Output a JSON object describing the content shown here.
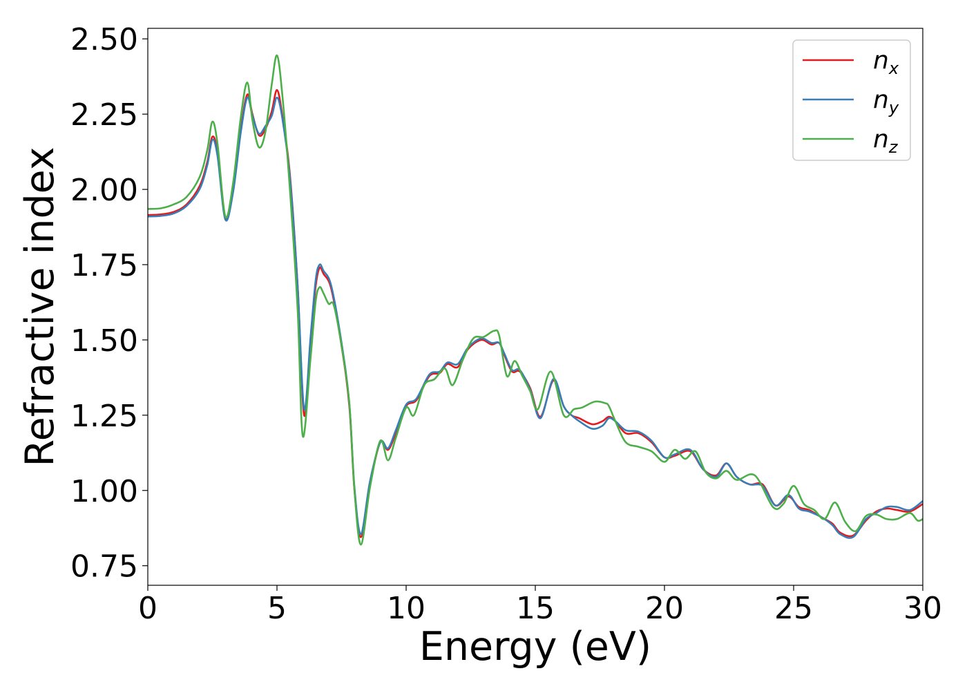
{
  "chart_data": {
    "type": "line",
    "xlabel": "Energy (eV)",
    "ylabel": "Refractive index",
    "xlim": [
      0,
      30
    ],
    "ylim": [
      0.685,
      2.535
    ],
    "x_ticks": [
      "0",
      "5",
      "10",
      "15",
      "20",
      "25",
      "30"
    ],
    "y_ticks": [
      "0.75",
      "1.00",
      "1.25",
      "1.50",
      "1.75",
      "2.00",
      "2.25",
      "2.50"
    ],
    "x_tick_values": [
      0,
      5,
      10,
      15,
      20,
      25,
      30
    ],
    "y_tick_values": [
      0.75,
      1.0,
      1.25,
      1.5,
      1.75,
      2.0,
      2.25,
      2.5
    ],
    "grid": false,
    "legend_position": "top-right",
    "series": [
      {
        "name": "n",
        "subscript": "x",
        "color": "#e41a1c",
        "points": [
          [
            0,
            1.915
          ],
          [
            0.5,
            1.917
          ],
          [
            1.0,
            1.925
          ],
          [
            1.5,
            1.95
          ],
          [
            2.0,
            2.01
          ],
          [
            2.3,
            2.09
          ],
          [
            2.5,
            2.175
          ],
          [
            2.7,
            2.12
          ],
          [
            3.0,
            1.905
          ],
          [
            3.3,
            2.0
          ],
          [
            3.6,
            2.2
          ],
          [
            3.85,
            2.315
          ],
          [
            4.05,
            2.25
          ],
          [
            4.3,
            2.18
          ],
          [
            4.55,
            2.2
          ],
          [
            4.8,
            2.26
          ],
          [
            5.0,
            2.33
          ],
          [
            5.2,
            2.25
          ],
          [
            5.5,
            2.05
          ],
          [
            5.8,
            1.68
          ],
          [
            6.05,
            1.25
          ],
          [
            6.3,
            1.5
          ],
          [
            6.5,
            1.68
          ],
          [
            6.65,
            1.74
          ],
          [
            6.8,
            1.72
          ],
          [
            7.1,
            1.67
          ],
          [
            7.5,
            1.48
          ],
          [
            7.8,
            1.28
          ],
          [
            8.0,
            1.0
          ],
          [
            8.25,
            0.845
          ],
          [
            8.6,
            1.02
          ],
          [
            9.0,
            1.16
          ],
          [
            9.3,
            1.135
          ],
          [
            9.6,
            1.19
          ],
          [
            10.0,
            1.28
          ],
          [
            10.4,
            1.3
          ],
          [
            10.9,
            1.38
          ],
          [
            11.3,
            1.39
          ],
          [
            11.6,
            1.42
          ],
          [
            12.0,
            1.41
          ],
          [
            12.4,
            1.47
          ],
          [
            12.9,
            1.5
          ],
          [
            13.3,
            1.485
          ],
          [
            13.6,
            1.49
          ],
          [
            13.8,
            1.45
          ],
          [
            14.1,
            1.395
          ],
          [
            14.4,
            1.395
          ],
          [
            14.8,
            1.34
          ],
          [
            15.2,
            1.245
          ],
          [
            15.7,
            1.365
          ],
          [
            16.1,
            1.28
          ],
          [
            16.4,
            1.25
          ],
          [
            16.7,
            1.24
          ],
          [
            17.2,
            1.22
          ],
          [
            17.6,
            1.23
          ],
          [
            17.85,
            1.245
          ],
          [
            18.1,
            1.23
          ],
          [
            18.5,
            1.19
          ],
          [
            19.0,
            1.19
          ],
          [
            19.5,
            1.16
          ],
          [
            20.0,
            1.11
          ],
          [
            20.4,
            1.115
          ],
          [
            21.0,
            1.13
          ],
          [
            21.5,
            1.07
          ],
          [
            22.0,
            1.05
          ],
          [
            22.4,
            1.09
          ],
          [
            22.8,
            1.045
          ],
          [
            23.3,
            1.02
          ],
          [
            23.8,
            1.02
          ],
          [
            24.3,
            0.95
          ],
          [
            24.8,
            0.98
          ],
          [
            25.2,
            0.945
          ],
          [
            25.6,
            0.935
          ],
          [
            26.1,
            0.91
          ],
          [
            26.5,
            0.89
          ],
          [
            26.8,
            0.86
          ],
          [
            27.3,
            0.85
          ],
          [
            27.8,
            0.9
          ],
          [
            28.2,
            0.93
          ],
          [
            28.6,
            0.94
          ],
          [
            29.0,
            0.935
          ],
          [
            29.5,
            0.93
          ],
          [
            30.0,
            0.955
          ]
        ]
      },
      {
        "name": "n",
        "subscript": "y",
        "color": "#377eb8",
        "points": [
          [
            0,
            1.91
          ],
          [
            0.5,
            1.912
          ],
          [
            1.0,
            1.92
          ],
          [
            1.5,
            1.945
          ],
          [
            2.0,
            2.0
          ],
          [
            2.3,
            2.08
          ],
          [
            2.5,
            2.165
          ],
          [
            2.7,
            2.11
          ],
          [
            3.0,
            1.9
          ],
          [
            3.3,
            1.99
          ],
          [
            3.6,
            2.19
          ],
          [
            3.85,
            2.305
          ],
          [
            4.05,
            2.245
          ],
          [
            4.3,
            2.185
          ],
          [
            4.55,
            2.21
          ],
          [
            4.8,
            2.245
          ],
          [
            5.0,
            2.305
          ],
          [
            5.2,
            2.24
          ],
          [
            5.5,
            2.04
          ],
          [
            5.8,
            1.68
          ],
          [
            6.05,
            1.27
          ],
          [
            6.3,
            1.51
          ],
          [
            6.5,
            1.7
          ],
          [
            6.65,
            1.75
          ],
          [
            6.8,
            1.73
          ],
          [
            7.1,
            1.68
          ],
          [
            7.5,
            1.49
          ],
          [
            7.8,
            1.29
          ],
          [
            8.0,
            1.01
          ],
          [
            8.25,
            0.855
          ],
          [
            8.6,
            1.03
          ],
          [
            9.0,
            1.16
          ],
          [
            9.3,
            1.14
          ],
          [
            9.6,
            1.2
          ],
          [
            10.0,
            1.285
          ],
          [
            10.4,
            1.305
          ],
          [
            10.9,
            1.385
          ],
          [
            11.3,
            1.395
          ],
          [
            11.6,
            1.425
          ],
          [
            12.0,
            1.42
          ],
          [
            12.4,
            1.475
          ],
          [
            12.9,
            1.505
          ],
          [
            13.3,
            1.49
          ],
          [
            13.6,
            1.49
          ],
          [
            13.8,
            1.455
          ],
          [
            14.1,
            1.4
          ],
          [
            14.4,
            1.4
          ],
          [
            14.8,
            1.335
          ],
          [
            15.2,
            1.24
          ],
          [
            15.7,
            1.37
          ],
          [
            16.1,
            1.28
          ],
          [
            16.4,
            1.25
          ],
          [
            16.7,
            1.23
          ],
          [
            17.2,
            1.205
          ],
          [
            17.6,
            1.215
          ],
          [
            17.85,
            1.24
          ],
          [
            18.1,
            1.23
          ],
          [
            18.5,
            1.2
          ],
          [
            19.0,
            1.195
          ],
          [
            19.5,
            1.165
          ],
          [
            20.0,
            1.11
          ],
          [
            20.4,
            1.12
          ],
          [
            21.0,
            1.135
          ],
          [
            21.5,
            1.07
          ],
          [
            22.0,
            1.045
          ],
          [
            22.4,
            1.09
          ],
          [
            22.8,
            1.045
          ],
          [
            23.3,
            1.02
          ],
          [
            23.8,
            1.015
          ],
          [
            24.3,
            0.95
          ],
          [
            24.8,
            0.985
          ],
          [
            25.2,
            0.94
          ],
          [
            25.6,
            0.93
          ],
          [
            26.1,
            0.91
          ],
          [
            26.5,
            0.885
          ],
          [
            26.8,
            0.855
          ],
          [
            27.3,
            0.845
          ],
          [
            27.8,
            0.905
          ],
          [
            28.2,
            0.925
          ],
          [
            28.6,
            0.945
          ],
          [
            29.0,
            0.945
          ],
          [
            29.5,
            0.935
          ],
          [
            30.0,
            0.965
          ]
        ]
      },
      {
        "name": "n",
        "subscript": "z",
        "color": "#4daf4a",
        "points": [
          [
            0,
            1.935
          ],
          [
            0.5,
            1.937
          ],
          [
            1.0,
            1.95
          ],
          [
            1.5,
            1.975
          ],
          [
            2.0,
            2.04
          ],
          [
            2.3,
            2.13
          ],
          [
            2.5,
            2.225
          ],
          [
            2.7,
            2.15
          ],
          [
            3.0,
            1.91
          ],
          [
            3.3,
            2.02
          ],
          [
            3.6,
            2.24
          ],
          [
            3.85,
            2.355
          ],
          [
            4.05,
            2.23
          ],
          [
            4.3,
            2.14
          ],
          [
            4.55,
            2.19
          ],
          [
            4.8,
            2.35
          ],
          [
            5.0,
            2.445
          ],
          [
            5.2,
            2.32
          ],
          [
            5.5,
            2.0
          ],
          [
            5.8,
            1.6
          ],
          [
            6.0,
            1.18
          ],
          [
            6.3,
            1.44
          ],
          [
            6.5,
            1.63
          ],
          [
            6.65,
            1.675
          ],
          [
            6.8,
            1.655
          ],
          [
            7.0,
            1.62
          ],
          [
            7.2,
            1.615
          ],
          [
            7.5,
            1.48
          ],
          [
            7.8,
            1.29
          ],
          [
            8.0,
            1.0
          ],
          [
            8.25,
            0.82
          ],
          [
            8.6,
            1.01
          ],
          [
            9.0,
            1.165
          ],
          [
            9.3,
            1.1
          ],
          [
            9.6,
            1.175
          ],
          [
            10.0,
            1.275
          ],
          [
            10.3,
            1.25
          ],
          [
            10.7,
            1.35
          ],
          [
            11.1,
            1.37
          ],
          [
            11.5,
            1.405
          ],
          [
            11.8,
            1.35
          ],
          [
            12.2,
            1.435
          ],
          [
            12.6,
            1.505
          ],
          [
            13.0,
            1.51
          ],
          [
            13.4,
            1.53
          ],
          [
            13.6,
            1.515
          ],
          [
            13.9,
            1.38
          ],
          [
            14.2,
            1.43
          ],
          [
            14.5,
            1.38
          ],
          [
            14.8,
            1.33
          ],
          [
            15.1,
            1.27
          ],
          [
            15.6,
            1.395
          ],
          [
            16.1,
            1.25
          ],
          [
            16.5,
            1.27
          ],
          [
            16.8,
            1.275
          ],
          [
            17.3,
            1.295
          ],
          [
            17.7,
            1.29
          ],
          [
            17.85,
            1.28
          ],
          [
            18.1,
            1.23
          ],
          [
            18.5,
            1.16
          ],
          [
            19.0,
            1.145
          ],
          [
            19.5,
            1.13
          ],
          [
            20.0,
            1.095
          ],
          [
            20.4,
            1.135
          ],
          [
            20.8,
            1.105
          ],
          [
            21.2,
            1.13
          ],
          [
            21.6,
            1.06
          ],
          [
            22.0,
            1.04
          ],
          [
            22.4,
            1.065
          ],
          [
            22.8,
            1.035
          ],
          [
            23.5,
            1.05
          ],
          [
            24.2,
            0.945
          ],
          [
            24.6,
            0.955
          ],
          [
            25.0,
            1.015
          ],
          [
            25.4,
            0.955
          ],
          [
            25.8,
            0.935
          ],
          [
            26.2,
            0.905
          ],
          [
            26.6,
            0.96
          ],
          [
            27.0,
            0.895
          ],
          [
            27.4,
            0.865
          ],
          [
            27.8,
            0.915
          ],
          [
            28.2,
            0.92
          ],
          [
            28.6,
            0.905
          ],
          [
            29.0,
            0.905
          ],
          [
            29.5,
            0.925
          ],
          [
            29.8,
            0.9
          ],
          [
            30.0,
            0.905
          ]
        ]
      }
    ]
  }
}
